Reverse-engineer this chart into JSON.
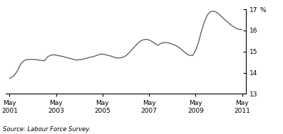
{
  "title": "",
  "ylabel": "%",
  "source_text": "Source: Labour Force Survey.",
  "xlim_start": 2001.2,
  "xlim_end": 2011.55,
  "ylim": [
    13,
    17
  ],
  "yticks": [
    13,
    14,
    15,
    16,
    17
  ],
  "xtick_positions": [
    2001.37,
    2003.37,
    2005.37,
    2007.37,
    2009.37,
    2011.37
  ],
  "xtick_labels": [
    "May\n2001",
    "May\n2003",
    "May\n2005",
    "May\n2007",
    "May\n2009",
    "May\n2011"
  ],
  "line_color": "#555555",
  "line_width": 0.9,
  "background_color": "#ffffff",
  "data_x": [
    2001.37,
    2001.45,
    2001.55,
    2001.62,
    2001.7,
    2001.78,
    2001.87,
    2002.0,
    2002.12,
    2002.25,
    2002.37,
    2002.5,
    2002.62,
    2002.75,
    2002.87,
    2003.0,
    2003.12,
    2003.25,
    2003.37,
    2003.5,
    2003.62,
    2003.75,
    2003.87,
    2004.0,
    2004.12,
    2004.25,
    2004.37,
    2004.5,
    2004.62,
    2004.75,
    2004.87,
    2005.0,
    2005.12,
    2005.25,
    2005.37,
    2005.5,
    2005.62,
    2005.75,
    2005.87,
    2006.0,
    2006.12,
    2006.25,
    2006.37,
    2006.5,
    2006.62,
    2006.75,
    2006.87,
    2007.0,
    2007.12,
    2007.25,
    2007.37,
    2007.5,
    2007.62,
    2007.75,
    2007.87,
    2008.0,
    2008.12,
    2008.25,
    2008.37,
    2008.5,
    2008.62,
    2008.75,
    2008.87,
    2009.0,
    2009.12,
    2009.25,
    2009.37,
    2009.5,
    2009.62,
    2009.75,
    2009.87,
    2010.0,
    2010.12,
    2010.25,
    2010.37,
    2010.5,
    2010.62,
    2010.75,
    2010.87,
    2011.0,
    2011.12,
    2011.25,
    2011.37
  ],
  "data_y": [
    13.72,
    13.78,
    13.85,
    13.95,
    14.08,
    14.25,
    14.45,
    14.58,
    14.62,
    14.63,
    14.63,
    14.62,
    14.6,
    14.58,
    14.56,
    14.75,
    14.82,
    14.85,
    14.83,
    14.8,
    14.78,
    14.74,
    14.7,
    14.67,
    14.63,
    14.6,
    14.62,
    14.63,
    14.67,
    14.71,
    14.74,
    14.77,
    14.82,
    14.87,
    14.88,
    14.85,
    14.82,
    14.78,
    14.73,
    14.7,
    14.7,
    14.73,
    14.8,
    14.93,
    15.08,
    15.23,
    15.38,
    15.5,
    15.56,
    15.58,
    15.55,
    15.48,
    15.38,
    15.3,
    15.38,
    15.43,
    15.43,
    15.4,
    15.35,
    15.3,
    15.22,
    15.12,
    15.0,
    14.88,
    14.82,
    14.82,
    15.05,
    15.45,
    15.95,
    16.4,
    16.72,
    16.88,
    16.92,
    16.88,
    16.78,
    16.65,
    16.52,
    16.4,
    16.28,
    16.18,
    16.1,
    16.05,
    16.05
  ]
}
